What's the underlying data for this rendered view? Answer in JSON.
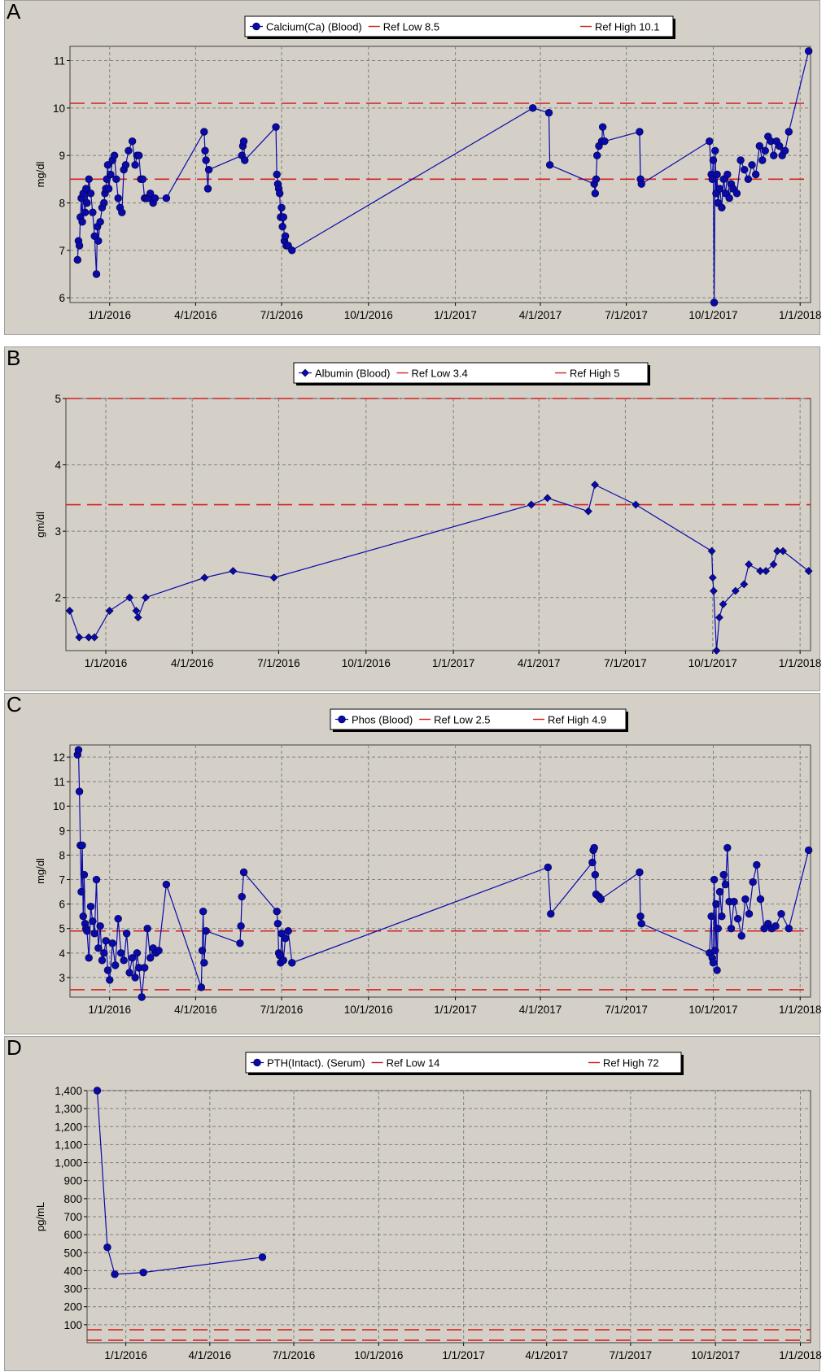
{
  "colors": {
    "series": "#0a0aa8",
    "ref": "#d42020",
    "grid": "#808080",
    "plot_bg": "#d4d0c8"
  },
  "x_ticks": [
    "1/1/2016",
    "4/1/2016",
    "7/1/2016",
    "10/1/2016",
    "1/1/2017",
    "4/1/2017",
    "7/1/2017",
    "10/1/2017",
    "1/1/2018"
  ],
  "chart_data": [
    {
      "panel": "A",
      "type": "line",
      "ylabel": "mg/dl",
      "xlim": [
        "2015-11-20",
        "2018-01-12"
      ],
      "ylim": [
        5.9,
        11.3
      ],
      "yticks": [
        6,
        7,
        8,
        9,
        10,
        11
      ],
      "yticks_label": [
        "6",
        "7",
        "8",
        "9",
        "10",
        "11"
      ],
      "legend": {
        "series": "Calcium(Ca) (Blood)",
        "low": "Ref Low 8.5",
        "high": "Ref High 10.1"
      },
      "marker": "circle",
      "ref_low": 8.5,
      "ref_high": 10.1,
      "x": [
        "2015-11-28",
        "2015-11-29",
        "2015-11-30",
        "2015-12-01",
        "2015-12-02",
        "2015-12-03",
        "2015-12-04",
        "2015-12-06",
        "2015-12-07",
        "2015-12-08",
        "2015-12-10",
        "2015-12-12",
        "2015-12-14",
        "2015-12-16",
        "2015-12-18",
        "2015-12-19",
        "2015-12-20",
        "2015-12-22",
        "2015-12-24",
        "2015-12-26",
        "2015-12-27",
        "2015-12-28",
        "2015-12-29",
        "2015-12-30",
        "2015-12-31",
        "2016-01-02",
        "2016-01-04",
        "2016-01-06",
        "2016-01-08",
        "2016-01-10",
        "2016-01-12",
        "2016-01-14",
        "2016-01-16",
        "2016-01-18",
        "2016-01-21",
        "2016-01-25",
        "2016-01-28",
        "2016-01-30",
        "2016-02-01",
        "2016-02-03",
        "2016-02-05",
        "2016-02-07",
        "2016-02-09",
        "2016-02-11",
        "2016-02-13",
        "2016-02-16",
        "2016-02-18",
        "2016-03-01",
        "2016-04-10",
        "2016-04-11",
        "2016-04-12",
        "2016-04-14",
        "2016-04-15",
        "2016-05-20",
        "2016-05-21",
        "2016-05-22",
        "2016-05-23",
        "2016-06-25",
        "2016-06-26",
        "2016-06-27",
        "2016-06-28",
        "2016-06-29",
        "2016-06-30",
        "2016-07-01",
        "2016-07-02",
        "2016-07-03",
        "2016-07-04",
        "2016-07-05",
        "2016-07-06",
        "2016-07-08",
        "2016-07-12",
        "2017-03-24",
        "2017-04-10",
        "2017-04-11",
        "2017-05-28",
        "2017-05-29",
        "2017-05-30",
        "2017-05-31",
        "2017-06-02",
        "2017-06-05",
        "2017-06-06",
        "2017-06-08",
        "2017-07-15",
        "2017-07-16",
        "2017-07-17",
        "2017-09-27",
        "2017-09-29",
        "2017-09-30",
        "2017-10-01",
        "2017-10-02",
        "2017-10-03",
        "2017-10-04",
        "2017-10-05",
        "2017-10-06",
        "2017-10-08",
        "2017-10-10",
        "2017-10-12",
        "2017-10-14",
        "2017-10-16",
        "2017-10-18",
        "2017-10-20",
        "2017-10-22",
        "2017-10-26",
        "2017-10-30",
        "2017-11-03",
        "2017-11-07",
        "2017-11-11",
        "2017-11-15",
        "2017-11-19",
        "2017-11-22",
        "2017-11-25",
        "2017-11-28",
        "2017-12-01",
        "2017-12-04",
        "2017-12-07",
        "2017-12-10",
        "2017-12-13",
        "2017-12-16",
        "2017-12-20",
        "2018-01-10"
      ],
      "y": [
        6.8,
        7.2,
        7.1,
        7.7,
        8.1,
        7.6,
        8.2,
        7.8,
        8.3,
        8.0,
        8.5,
        8.2,
        7.8,
        7.3,
        6.5,
        7.5,
        7.2,
        7.6,
        7.9,
        8.0,
        8.2,
        8.3,
        8.5,
        8.8,
        8.3,
        8.6,
        8.9,
        9.0,
        8.5,
        8.1,
        7.9,
        7.8,
        8.7,
        8.8,
        9.1,
        9.3,
        8.8,
        9.0,
        9.0,
        8.5,
        8.5,
        8.1,
        8.1,
        8.1,
        8.2,
        8.0,
        8.1,
        8.1,
        9.5,
        9.1,
        8.9,
        8.3,
        8.7,
        9.0,
        9.2,
        9.3,
        8.9,
        9.6,
        8.6,
        8.4,
        8.3,
        8.2,
        7.7,
        7.9,
        7.5,
        7.7,
        7.2,
        7.3,
        7.1,
        7.1,
        7.0,
        10.0,
        9.9,
        8.8,
        8.4,
        8.2,
        8.5,
        9.0,
        9.2,
        9.3,
        9.6,
        9.3,
        9.5,
        8.5,
        8.4,
        9.3,
        8.6,
        8.5,
        8.9,
        5.9,
        9.1,
        8.2,
        8.6,
        8.0,
        8.3,
        7.9,
        8.5,
        8.2,
        8.6,
        8.1,
        8.4,
        8.3,
        8.2,
        8.9,
        8.7,
        8.5,
        8.8,
        8.6,
        9.2,
        8.9,
        9.1,
        9.4,
        9.3,
        9.0,
        9.3,
        9.2,
        9.0,
        9.1,
        9.5,
        11.2
      ]
    },
    {
      "panel": "B",
      "type": "line",
      "ylabel": "gm/dl",
      "xlim": [
        "2015-11-20",
        "2018-01-12"
      ],
      "ylim": [
        1.2,
        5.0
      ],
      "yticks": [
        2,
        3,
        4,
        5
      ],
      "yticks_label": [
        "2",
        "3",
        "4",
        "5"
      ],
      "legend": {
        "series": "Albumin (Blood)",
        "low": "Ref Low 3.4",
        "high": "Ref High 5"
      },
      "marker": "diamond",
      "ref_low": 3.4,
      "ref_high": 5.0,
      "x": [
        "2015-11-24",
        "2015-12-04",
        "2015-12-14",
        "2015-12-20",
        "2016-01-05",
        "2016-01-26",
        "2016-02-02",
        "2016-02-04",
        "2016-02-12",
        "2016-04-14",
        "2016-05-14",
        "2016-06-26",
        "2017-03-24",
        "2017-04-10",
        "2017-05-23",
        "2017-05-30",
        "2017-07-12",
        "2017-09-30",
        "2017-10-01",
        "2017-10-02",
        "2017-10-05",
        "2017-10-08",
        "2017-10-12",
        "2017-10-25",
        "2017-11-03",
        "2017-11-08",
        "2017-11-20",
        "2017-11-26",
        "2017-12-04",
        "2017-12-08",
        "2017-12-14",
        "2018-01-10"
      ],
      "y": [
        1.8,
        1.4,
        1.4,
        1.4,
        1.8,
        2.0,
        1.8,
        1.7,
        2.0,
        2.3,
        2.4,
        2.3,
        3.4,
        3.5,
        3.3,
        3.7,
        3.4,
        2.7,
        2.3,
        2.1,
        1.2,
        1.7,
        1.9,
        2.1,
        2.2,
        2.5,
        2.4,
        2.4,
        2.5,
        2.7,
        2.7,
        2.4
      ]
    },
    {
      "panel": "C",
      "type": "line",
      "ylabel": "mg/dl",
      "xlim": [
        "2015-11-20",
        "2018-01-12"
      ],
      "ylim": [
        2.2,
        12.5
      ],
      "yticks": [
        3,
        4,
        5,
        6,
        7,
        8,
        9,
        10,
        11,
        12
      ],
      "yticks_label": [
        "3",
        "4",
        "5",
        "6",
        "7",
        "8",
        "9",
        "10",
        "11",
        "12"
      ],
      "legend": {
        "series": "Phos (Blood)",
        "low": "Ref Low 2.5",
        "high": "Ref High 4.9"
      },
      "marker": "circle",
      "ref_low": 2.5,
      "ref_high": 4.9,
      "x": [
        "2015-11-28",
        "2015-11-29",
        "2015-11-30",
        "2015-12-01",
        "2015-12-02",
        "2015-12-03",
        "2015-12-04",
        "2015-12-05",
        "2015-12-06",
        "2015-12-07",
        "2015-12-08",
        "2015-12-10",
        "2015-12-12",
        "2015-12-14",
        "2015-12-16",
        "2015-12-18",
        "2015-12-20",
        "2015-12-22",
        "2015-12-24",
        "2015-12-26",
        "2015-12-28",
        "2015-12-30",
        "2016-01-01",
        "2016-01-04",
        "2016-01-07",
        "2016-01-10",
        "2016-01-13",
        "2016-01-16",
        "2016-01-19",
        "2016-01-22",
        "2016-01-25",
        "2016-01-28",
        "2016-01-30",
        "2016-02-01",
        "2016-02-04",
        "2016-02-07",
        "2016-02-10",
        "2016-02-13",
        "2016-02-16",
        "2016-02-19",
        "2016-02-22",
        "2016-03-01",
        "2016-04-07",
        "2016-04-08",
        "2016-04-09",
        "2016-04-10",
        "2016-04-12",
        "2016-05-18",
        "2016-05-19",
        "2016-05-20",
        "2016-05-22",
        "2016-06-26",
        "2016-06-27",
        "2016-06-28",
        "2016-06-29",
        "2016-06-30",
        "2016-07-01",
        "2016-07-03",
        "2016-07-05",
        "2016-07-08",
        "2016-07-12",
        "2017-04-09",
        "2017-04-12",
        "2017-05-26",
        "2017-05-27",
        "2017-05-28",
        "2017-05-29",
        "2017-05-30",
        "2017-06-02",
        "2017-06-04",
        "2017-07-15",
        "2017-07-16",
        "2017-07-17",
        "2017-09-27",
        "2017-09-29",
        "2017-09-30",
        "2017-10-01",
        "2017-10-02",
        "2017-10-03",
        "2017-10-04",
        "2017-10-05",
        "2017-10-06",
        "2017-10-08",
        "2017-10-10",
        "2017-10-12",
        "2017-10-14",
        "2017-10-16",
        "2017-10-18",
        "2017-10-20",
        "2017-10-23",
        "2017-10-27",
        "2017-10-31",
        "2017-11-04",
        "2017-11-08",
        "2017-11-12",
        "2017-11-16",
        "2017-11-20",
        "2017-11-24",
        "2017-11-28",
        "2017-12-02",
        "2017-12-06",
        "2017-12-12",
        "2017-12-20",
        "2018-01-10"
      ],
      "y": [
        12.1,
        12.3,
        10.6,
        8.4,
        6.5,
        8.4,
        5.5,
        7.2,
        5.2,
        5.0,
        4.9,
        3.8,
        5.9,
        5.3,
        4.8,
        7.0,
        4.2,
        5.1,
        3.7,
        4.0,
        4.5,
        3.3,
        2.9,
        4.4,
        3.5,
        5.4,
        4.0,
        3.7,
        4.8,
        3.2,
        3.8,
        3.0,
        4.0,
        3.4,
        2.2,
        3.4,
        5.0,
        3.8,
        4.2,
        4.0,
        4.1,
        6.8,
        2.6,
        4.1,
        5.7,
        3.6,
        4.9,
        4.4,
        5.1,
        6.3,
        7.3,
        5.7,
        5.2,
        4.0,
        3.9,
        3.6,
        4.8,
        3.7,
        4.6,
        4.9,
        3.6,
        7.5,
        5.6,
        7.7,
        8.2,
        8.3,
        7.2,
        6.4,
        6.3,
        6.2,
        7.3,
        5.5,
        5.2,
        4.0,
        5.5,
        3.8,
        3.6,
        7.0,
        4.1,
        6.0,
        3.3,
        5.0,
        6.5,
        5.5,
        7.2,
        6.8,
        8.3,
        6.1,
        5.0,
        6.1,
        5.4,
        4.7,
        6.2,
        5.6,
        6.9,
        7.6,
        6.2,
        5.0,
        5.2,
        5.0,
        5.1,
        5.6,
        5.0,
        8.2
      ]
    },
    {
      "panel": "D",
      "type": "line",
      "ylabel": "pg/mL",
      "xlim": [
        "2015-11-20",
        "2018-01-12"
      ],
      "ylim": [
        0,
        1400
      ],
      "yticks": [
        100,
        200,
        300,
        400,
        500,
        600,
        700,
        800,
        900,
        1000,
        1100,
        1200,
        1300,
        1400
      ],
      "yticks_label": [
        "100",
        "200",
        "300",
        "400",
        "500",
        "600",
        "700",
        "800",
        "900",
        "1,000",
        "1,100",
        "1,200",
        "1,300",
        "1,400"
      ],
      "legend": {
        "series": "PTH(Intact). (Serum)",
        "low": "Ref Low 14",
        "high": "Ref High 72"
      },
      "marker": "circle",
      "ref_low": 14,
      "ref_high": 72,
      "x": [
        "2015-12-01",
        "2015-12-12",
        "2015-12-20",
        "2016-01-20",
        "2016-05-28"
      ],
      "y": [
        1400,
        530,
        380,
        390,
        475
      ]
    }
  ]
}
